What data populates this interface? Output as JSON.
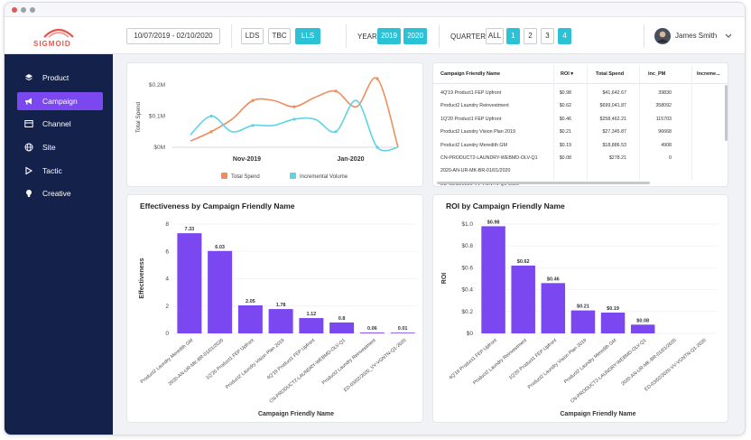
{
  "app": {
    "logo_text": "SIGMOID"
  },
  "header": {
    "date_range": "10/07/2019 - 02/10/2020",
    "segments": [
      "LDS",
      "TBC",
      "LLS"
    ],
    "segment_active": "LLS",
    "year_label": "YEAR",
    "years": [
      "2019",
      "2020"
    ],
    "quarter_label": "QUARTER",
    "quarters": [
      "ALL",
      "1",
      "2",
      "3",
      "4"
    ],
    "user_name": "James Smith"
  },
  "sidebar": {
    "items": [
      {
        "label": "Product",
        "icon": "layers-icon"
      },
      {
        "label": "Campaign",
        "icon": "megaphone-icon"
      },
      {
        "label": "Channel",
        "icon": "channel-icon"
      },
      {
        "label": "Site",
        "icon": "globe-icon"
      },
      {
        "label": "Tactic",
        "icon": "tactic-icon"
      },
      {
        "label": "Creative",
        "icon": "bulb-icon"
      }
    ],
    "active": "Campaign"
  },
  "colors": {
    "accent": "#7a47f0",
    "teal": "#2cc2d6",
    "orange": "#ee8e5e",
    "cyan": "#5fd3e4",
    "sidebar": "#14214a"
  },
  "line_chart": {
    "ylabel": "Total Spend",
    "yticks": [
      "$0.2M",
      "$0.1M",
      "$0M"
    ],
    "xticks": [
      "Nov-2019",
      "Jan-2020"
    ],
    "legend": [
      "Total Spend",
      "Incremental Volume"
    ]
  },
  "table": {
    "headers": [
      "Campaign Friendly Name",
      "ROI",
      "Total Spend",
      "inc_PM",
      "Increme..."
    ],
    "rows": [
      [
        "4Q'19 Product1 FEP Upfront",
        "$0.98",
        "$41,642.67",
        "39830"
      ],
      [
        "Product2 Laundry Reinvestment",
        "$0.62",
        "$699,041.87",
        "358092"
      ],
      [
        "1Q'20 Product1 FEP Upfront",
        "$0.46",
        "$258,462.21",
        "115703"
      ],
      [
        "Product2 Laundry Vision Plan 2019",
        "$0.21",
        "$27,345.87",
        "96668"
      ],
      [
        "Product2 Laundry Meredith GM",
        "$0.19",
        "$18,886.53",
        "4908"
      ],
      [
        "CN-PRODUCT2-LAUNDRY-WEBMD-OLV-Q1",
        "$0.08",
        "$278.21",
        "0"
      ],
      [
        "2020-AN-UR-MK-BR-01/01/2020",
        "",
        "",
        ""
      ],
      [
        "ED-03/02/2020-VV-VGNTN-Q1-2020",
        "",
        "",
        ""
      ]
    ]
  },
  "chart_data": [
    {
      "type": "line",
      "title": "",
      "ylabel": "Total Spend",
      "xlabel": "",
      "ylim": [
        0,
        0.2
      ],
      "xtick_labels": [
        "Nov-2019",
        "Jan-2020"
      ],
      "series": [
        {
          "name": "Total Spend",
          "values": [
            0.02,
            0.05,
            0.09,
            0.15,
            0.15,
            0.13,
            0.16,
            0.18,
            0.13,
            0.22,
            0.0
          ]
        },
        {
          "name": "Incremental Volume",
          "values": [
            0.04,
            0.1,
            0.05,
            0.07,
            0.07,
            0.09,
            0.09,
            0.05,
            0.15,
            0.0,
            0.0
          ]
        }
      ]
    },
    {
      "type": "bar",
      "title": "Effectiveness by Campaign Friendly Name",
      "xlabel": "Campaign Friendly Name",
      "ylabel": "Effectiveness",
      "ylim": [
        0,
        8
      ],
      "yticks": [
        0,
        2,
        4,
        6,
        8
      ],
      "categories": [
        "Product2 Laundry Meredith GM",
        "2020-AN-UR-MK-BR-01/01/2020",
        "1Q'20 Product1 FEP Upfront",
        "Product2 Laundry Vision Plan 2019",
        "4Q'19 Product1 FEP Upfront",
        "CN-PRODUCT2-LAUNDRY-WEBMD-OLV-Q1",
        "Product2 Laundry Reinvestment",
        "ED-03/02/2020_VV-VGNTN-Q1-2020"
      ],
      "values": [
        7.33,
        6.03,
        2.05,
        1.78,
        1.12,
        0.8,
        0.06,
        0.01
      ],
      "value_labels": [
        "7.33",
        "6.03",
        "2.05",
        "1.78",
        "1.12",
        "0.8",
        "0.06",
        "0.01"
      ]
    },
    {
      "type": "bar",
      "title": "ROI by Campaign Friendly Name",
      "xlabel": "Campaign Friendly Name",
      "ylabel": "ROI",
      "ylim": [
        0,
        1.0
      ],
      "ytick_labels": [
        "$0",
        "$0.2",
        "$0.4",
        "$0.6",
        "$0.8",
        "$1.0"
      ],
      "categories": [
        "4Q'19 Product1 FEP Upfront",
        "Product2 Laundry Reinvestment",
        "1Q'20 Product1 FEP Upfront",
        "Product2 Laundry Vision Plan 2019",
        "Product2 Laundry Meredith GM",
        "CN-PRODUCT2-LAUNDRY-WEBMD-OLV-Q1",
        "2020-AN-UR-MK-BR-01/01/2020",
        "ED-03/02/2020-VV-VGNTN-Q1-2020"
      ],
      "values": [
        0.98,
        0.62,
        0.46,
        0.21,
        0.19,
        0.08,
        0,
        0
      ],
      "value_labels": [
        "$0.98",
        "$0.62",
        "$0.46",
        "$0.21",
        "$0.19",
        "$0.08",
        "",
        ""
      ]
    }
  ]
}
